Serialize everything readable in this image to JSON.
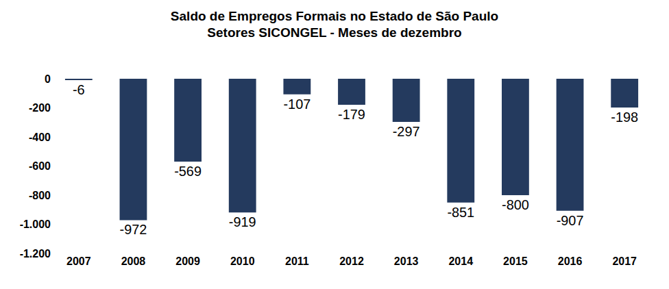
{
  "chart_data": {
    "type": "bar",
    "title": "Saldo de Empregos Formais no Estado de São Paulo",
    "subtitle": "Setores SICONGEL - Meses de dezembro",
    "categories": [
      "2007",
      "2008",
      "2009",
      "2010",
      "2011",
      "2012",
      "2013",
      "2014",
      "2015",
      "2016",
      "2017"
    ],
    "values": [
      -6,
      -972,
      -569,
      -919,
      -107,
      -179,
      -297,
      -851,
      -800,
      -907,
      -198
    ],
    "color": "#243a5e",
    "ylim": [
      -1200,
      0
    ],
    "yticks": [
      0,
      -200,
      -400,
      -600,
      -800,
      {
        "value": -1000,
        "label": "-1.000"
      },
      {
        "value": -1200,
        "label": "-1.200"
      }
    ],
    "grid": false,
    "data_labels": true
  }
}
